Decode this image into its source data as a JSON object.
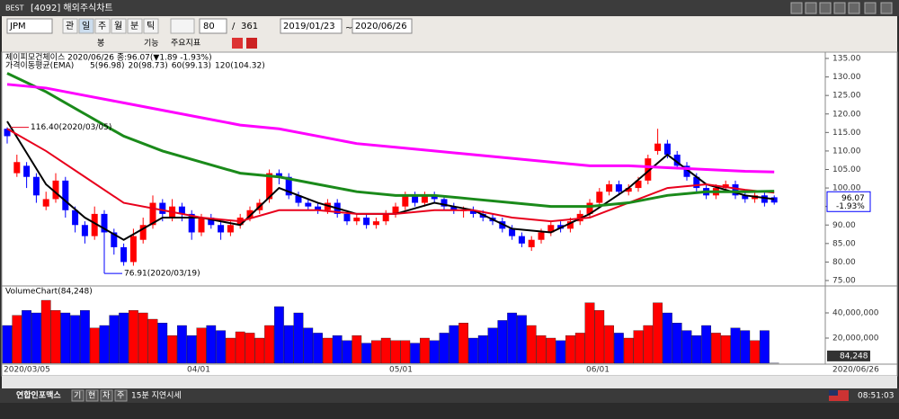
{
  "window": {
    "logo": "BEST",
    "title": "[4092] 해외주식차트"
  },
  "toolbar": {
    "symbol": "JPM",
    "buttons": [
      "관",
      "일",
      "주",
      "월",
      "분",
      "틱"
    ],
    "count": "80",
    "separator": "/",
    "total": "361",
    "start_date": "2019/01/23",
    "tilde": "~",
    "end_date": "2020/06/26",
    "menu": [
      "봉",
      "기능",
      "주요지표"
    ]
  },
  "price_chart": {
    "type": "candlestick",
    "header": "제이피모건체이스  2020/06/26 종:96.07(▼1.89 -1.93%)",
    "ma_title": "가격이동평균(EMA)",
    "candles": [
      [
        116,
        116.4,
        112,
        114
      ],
      [
        104,
        109,
        103,
        107
      ],
      [
        106,
        107,
        100,
        103
      ],
      [
        103,
        104,
        96,
        98
      ],
      [
        95,
        99,
        94,
        97
      ],
      [
        97,
        104,
        96,
        102
      ],
      [
        102,
        103,
        92,
        94
      ],
      [
        94,
        95,
        88,
        90
      ],
      [
        90,
        91,
        85,
        87
      ],
      [
        87,
        95,
        86,
        93
      ],
      [
        93,
        94,
        76.91,
        88
      ],
      [
        88,
        89,
        82,
        84
      ],
      [
        84,
        85,
        79,
        80
      ],
      [
        80,
        89,
        79,
        87
      ],
      [
        86,
        92,
        85,
        90
      ],
      [
        90,
        98,
        89,
        96
      ],
      [
        96,
        97,
        91,
        93
      ],
      [
        92,
        97,
        91,
        95
      ],
      [
        95,
        96,
        91,
        93
      ],
      [
        93,
        94,
        86,
        88
      ],
      [
        88,
        93,
        87,
        92
      ],
      [
        92,
        93,
        89,
        90
      ],
      [
        90,
        91,
        86,
        88
      ],
      [
        88,
        91,
        87,
        90
      ],
      [
        90,
        93,
        89,
        92
      ],
      [
        92,
        95,
        91,
        94
      ],
      [
        94,
        97,
        93,
        96
      ],
      [
        97,
        105,
        96,
        104
      ],
      [
        104,
        105,
        101,
        103
      ],
      [
        103,
        104,
        97,
        98
      ],
      [
        98,
        99,
        95,
        96
      ],
      [
        96,
        97,
        94,
        95
      ],
      [
        95,
        96,
        93,
        94
      ],
      [
        94,
        97,
        93,
        96
      ],
      [
        96,
        97,
        92,
        93
      ],
      [
        93,
        94,
        90,
        91
      ],
      [
        91,
        93,
        90,
        92
      ],
      [
        92,
        93,
        89,
        90
      ],
      [
        90,
        92,
        89,
        91
      ],
      [
        91,
        94,
        90,
        93
      ],
      [
        93,
        96,
        92,
        95
      ],
      [
        95,
        99,
        94,
        98
      ],
      [
        98,
        99,
        95,
        96
      ],
      [
        96,
        99,
        95,
        98
      ],
      [
        98,
        99,
        96,
        97
      ],
      [
        97,
        98,
        94,
        95
      ],
      [
        95,
        96,
        93,
        94
      ],
      [
        94,
        95,
        92,
        94
      ],
      [
        94,
        95,
        92,
        93
      ],
      [
        93,
        94,
        91,
        92
      ],
      [
        92,
        93,
        90,
        91
      ],
      [
        91,
        92,
        88,
        89
      ],
      [
        89,
        90,
        86,
        87
      ],
      [
        87,
        88,
        84,
        85
      ],
      [
        84,
        87,
        83,
        86
      ],
      [
        86,
        89,
        85,
        88
      ],
      [
        88,
        91,
        87,
        90
      ],
      [
        90,
        91,
        88,
        89
      ],
      [
        89,
        92,
        88,
        91
      ],
      [
        91,
        94,
        90,
        93
      ],
      [
        93,
        97,
        92,
        96
      ],
      [
        96,
        100,
        95,
        99
      ],
      [
        99,
        102,
        98,
        101
      ],
      [
        101,
        102,
        98,
        99
      ],
      [
        99,
        101,
        98,
        100
      ],
      [
        100,
        103,
        99,
        102
      ],
      [
        102,
        109,
        101,
        108
      ],
      [
        110,
        116,
        109,
        112
      ],
      [
        112,
        113,
        108,
        109
      ],
      [
        109,
        110,
        105,
        106
      ],
      [
        106,
        107,
        102,
        103
      ],
      [
        103,
        104,
        99,
        100
      ],
      [
        100,
        101,
        97,
        98
      ],
      [
        98,
        101,
        97,
        100
      ],
      [
        100,
        102,
        99,
        101
      ],
      [
        101,
        102,
        97,
        98
      ],
      [
        98,
        99,
        96,
        97
      ],
      [
        97,
        99,
        96,
        98
      ],
      [
        98,
        99,
        95,
        96
      ],
      [
        97.5,
        98,
        95.5,
        96.07
      ]
    ],
    "ylim": [
      75,
      135
    ],
    "yticks": [
      {
        "value": 75,
        "label": "75.00"
      },
      {
        "value": 80,
        "label": "80.00"
      },
      {
        "value": 85,
        "label": "85.00"
      },
      {
        "value": 90,
        "label": "90.00"
      },
      {
        "value": 95,
        "label": "95.00"
      },
      {
        "value": 100,
        "label": "100.00"
      },
      {
        "value": 105,
        "label": "105.00"
      },
      {
        "value": 110,
        "label": "110.00"
      },
      {
        "value": 115,
        "label": "115.00"
      },
      {
        "value": 120,
        "label": "120.00"
      },
      {
        "value": 125,
        "label": "125.00"
      },
      {
        "value": 130,
        "label": "130.00"
      },
      {
        "value": 135,
        "label": "135.00"
      }
    ],
    "ma": {
      "x": [
        0,
        4,
        8,
        12,
        16,
        20,
        24,
        28,
        32,
        36,
        40,
        44,
        48,
        52,
        56,
        60,
        64,
        68,
        72,
        76,
        79
      ],
      "series": [
        {
          "name": "5(96.98)",
          "color": "#000000",
          "values": [
            118,
            101,
            92,
            86,
            92,
            92,
            90,
            100,
            96,
            93,
            93,
            96,
            94,
            89,
            88,
            93,
            100,
            109,
            101,
            98,
            96.98
          ]
        },
        {
          "name": "20(98.73)",
          "color": "#e8001c",
          "values": [
            116,
            110,
            103,
            96,
            94,
            92,
            91,
            94,
            94,
            93,
            93,
            94,
            94,
            92,
            91,
            92,
            96,
            100,
            101,
            99.5,
            98.73
          ]
        },
        {
          "name": "60(99.13)",
          "color": "#1a8a1a",
          "values": [
            131,
            126,
            120,
            114,
            110,
            107,
            104,
            103,
            101,
            99,
            98,
            98,
            97,
            96,
            95,
            95,
            96,
            98,
            99,
            99,
            99.13
          ]
        },
        {
          "name": "120(104.32)",
          "color": "#ff00ff",
          "values": [
            128,
            127,
            125,
            123,
            121,
            119,
            117,
            116,
            114,
            112,
            111,
            110,
            109,
            108,
            107,
            106,
            106,
            105.5,
            105,
            104.5,
            104.32
          ]
        }
      ]
    },
    "annotations": [
      {
        "value": 116.4,
        "label": "116.40(2020/03/05)"
      },
      {
        "value": 76.91,
        "label": "76.91(2020/03/19)"
      }
    ],
    "last_price": {
      "value": 96.07,
      "label": "96.07",
      "change": "-1.93%"
    }
  },
  "volume_chart": {
    "type": "bar",
    "title": "VolumeChart(84,248)",
    "values": [
      30000000,
      38000000,
      42000000,
      40000000,
      50000000,
      42000000,
      40000000,
      38000000,
      42000000,
      28000000,
      30000000,
      38000000,
      40000000,
      42000000,
      40000000,
      35000000,
      32000000,
      22000000,
      30000000,
      22000000,
      28000000,
      30000000,
      26000000,
      20000000,
      25000000,
      24000000,
      20000000,
      30000000,
      45000000,
      30000000,
      40000000,
      28000000,
      24000000,
      20000000,
      22000000,
      18000000,
      22000000,
      16000000,
      18000000,
      20000000,
      18000000,
      18000000,
      16000000,
      20000000,
      18000000,
      24000000,
      30000000,
      32000000,
      20000000,
      22000000,
      28000000,
      34000000,
      40000000,
      38000000,
      30000000,
      22000000,
      20000000,
      18000000,
      22000000,
      24000000,
      48000000,
      42000000,
      30000000,
      24000000,
      20000000,
      26000000,
      30000000,
      48000000,
      40000000,
      32000000,
      26000000,
      22000000,
      30000000,
      24000000,
      22000000,
      28000000,
      26000000,
      18000000,
      26000000,
      84248
    ],
    "ylim": [
      0,
      60000000
    ],
    "yticks": [
      {
        "value": 20000000,
        "label": "20,000,000"
      },
      {
        "value": 40000000,
        "label": "40,000,000"
      }
    ],
    "last": {
      "value": 84248,
      "label": "84,248"
    }
  },
  "x_labels": [
    "2020/03/05",
    "04/01",
    "05/01",
    "06/01",
    "2020/06/26"
  ],
  "status": {
    "brand": "연합인포맥스",
    "buttons": [
      "기",
      "현",
      "차",
      "주"
    ],
    "delay": "15분 지연시세",
    "time": "08:51:03"
  }
}
